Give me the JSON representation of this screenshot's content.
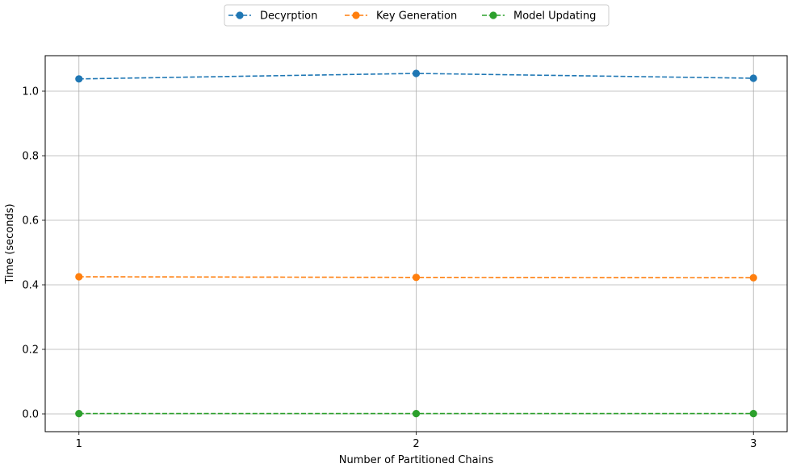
{
  "chart_data": {
    "type": "line",
    "title": "",
    "xlabel": "Number of Partitioned Chains",
    "ylabel": "Time (seconds)",
    "x": [
      1,
      2,
      3
    ],
    "xticks": [
      "1",
      "2",
      "3"
    ],
    "yticks": [
      "0.0",
      "0.2",
      "0.4",
      "0.6",
      "0.8",
      "1.0"
    ],
    "xlim": [
      0.9,
      3.1
    ],
    "ylim": [
      -0.055,
      1.11
    ],
    "grid": true,
    "legend_position": "top-center",
    "series": [
      {
        "name": "Decyrption",
        "values": [
          1.038,
          1.055,
          1.04
        ],
        "color": "#1f77b4",
        "line_style": "dashed",
        "marker": "circle"
      },
      {
        "name": "Key Generation",
        "values": [
          0.425,
          0.423,
          0.422
        ],
        "color": "#ff7f0e",
        "line_style": "dashed",
        "marker": "circle"
      },
      {
        "name": "Model Updating",
        "values": [
          0.001,
          0.001,
          0.001
        ],
        "color": "#2ca02c",
        "line_style": "dashed",
        "marker": "circle"
      }
    ]
  }
}
